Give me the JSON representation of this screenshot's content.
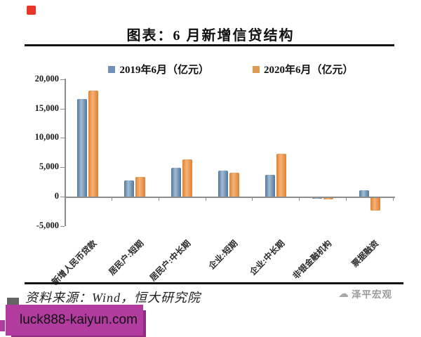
{
  "page": {
    "marker_color": "#e8352a"
  },
  "title": "图表：6 月新增信贷结构",
  "chart_data": {
    "type": "bar",
    "title": "图表：6 月新增信贷结构",
    "categories": [
      "新增人民币贷款",
      "居民户:短期",
      "居民户:中长期",
      "企业:短期",
      "企业:中长期",
      "非银金融机构",
      "票据融资"
    ],
    "series": [
      {
        "name": "2019年6月（亿元）",
        "swatch": "#7291b4",
        "edge": "#50769d",
        "center": "#a3bcd4",
        "values": [
          16600,
          2700,
          4900,
          4400,
          3750,
          -160,
          1100
        ]
      },
      {
        "name": "2020年6月（亿元）",
        "swatch": "#dd9b55",
        "edge": "#e0812f",
        "center": "#f4b377",
        "values": [
          18100,
          3400,
          6350,
          4050,
          7350,
          -270,
          -2100
        ]
      }
    ],
    "ylim": [
      -5000,
      20000
    ],
    "ytick_labels": [
      "20,000",
      "15,000",
      "10,000",
      "5,000",
      "0",
      "-5,000"
    ],
    "ytick_values": [
      20000,
      15000,
      10000,
      5000,
      0,
      -5000
    ],
    "grid": false,
    "legend_position": "top"
  },
  "footer": {
    "source": "资料来源：Wind，恒大研究院",
    "watermark": "泽平宏观",
    "cloud_glyph": "☁"
  },
  "banner": {
    "text": "luck888-kaiyun.com",
    "bg": "#b23ba0",
    "shadow": "#8e2e80"
  }
}
